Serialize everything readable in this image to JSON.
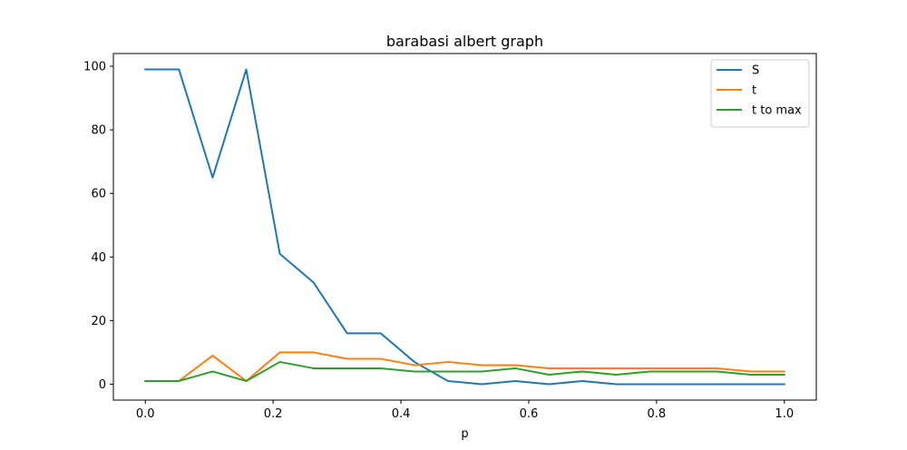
{
  "chart_data": {
    "type": "line",
    "title": "barabasi albert graph",
    "xlabel": "p",
    "ylabel": "",
    "xlim": [
      -0.05,
      1.05
    ],
    "ylim": [
      -5,
      104
    ],
    "xticks": [
      0.0,
      0.2,
      0.4,
      0.6,
      0.8,
      1.0
    ],
    "xtick_labels": [
      "0.0",
      "0.2",
      "0.4",
      "0.6",
      "0.8",
      "1.0"
    ],
    "yticks": [
      0,
      20,
      40,
      60,
      80,
      100
    ],
    "ytick_labels": [
      "0",
      "20",
      "40",
      "60",
      "80",
      "100"
    ],
    "grid": false,
    "legend_position": "top-right",
    "x": [
      0.0,
      0.0526,
      0.1053,
      0.1579,
      0.2105,
      0.2632,
      0.3158,
      0.3684,
      0.4211,
      0.4737,
      0.5263,
      0.5789,
      0.6316,
      0.6842,
      0.7368,
      0.7895,
      0.8421,
      0.8947,
      0.9474,
      1.0
    ],
    "series": [
      {
        "name": "S",
        "color": "#1f77b4",
        "values": [
          99,
          99,
          65,
          99,
          41,
          32,
          16,
          16,
          7,
          1,
          0,
          1,
          0,
          1,
          0,
          0,
          0,
          0,
          0,
          0
        ]
      },
      {
        "name": "t",
        "color": "#ff7f0e",
        "values": [
          1,
          1,
          9,
          1,
          10,
          10,
          8,
          8,
          6,
          7,
          6,
          6,
          5,
          5,
          5,
          5,
          5,
          5,
          4,
          4
        ]
      },
      {
        "name": "t to max",
        "color": "#2ca02c",
        "values": [
          1,
          1,
          4,
          1,
          7,
          5,
          5,
          5,
          4,
          4,
          4,
          5,
          3,
          4,
          3,
          4,
          4,
          4,
          3,
          3
        ]
      }
    ]
  }
}
